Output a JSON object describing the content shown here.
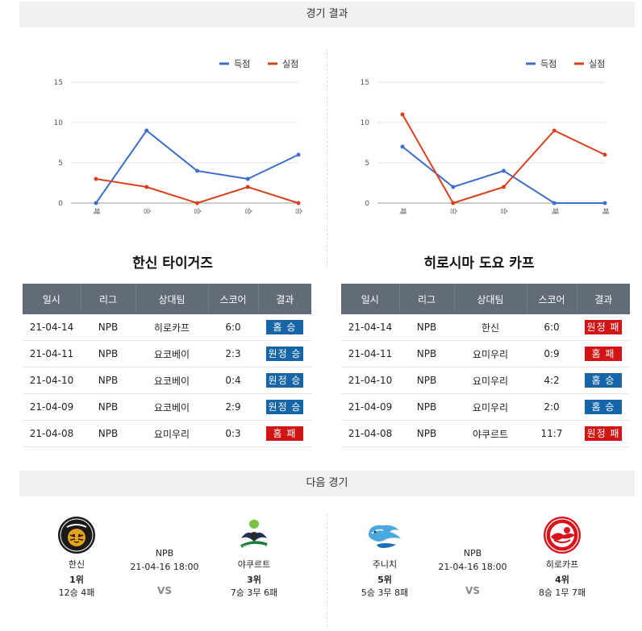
{
  "sections": {
    "results_title": "경기 결과",
    "next_title": "다음 경기"
  },
  "legend": {
    "scored": "득점",
    "allowed": "실점"
  },
  "colors": {
    "scored": "#3b6fc9",
    "allowed": "#d9401c",
    "win_badge": "#1565a8",
    "loss_badge": "#d21414",
    "header": "#626c78"
  },
  "table_headers": [
    "일시",
    "리그",
    "상대팀",
    "스코어",
    "결과"
  ],
  "teams": [
    {
      "name": "한신 타이거즈",
      "chart_data": {
        "type": "line",
        "categories": [
          "패",
          "승",
          "승",
          "승",
          "승"
        ],
        "series": [
          {
            "name": "득점",
            "values": [
              0,
              9,
              4,
              3,
              6
            ]
          },
          {
            "name": "실점",
            "values": [
              3,
              2,
              0,
              2,
              0
            ]
          }
        ],
        "yticks": [
          0,
          5,
          10,
          15
        ],
        "ylim": [
          0,
          15
        ],
        "grid": true,
        "legend": "top-right"
      },
      "recent": [
        {
          "date": "21-04-14",
          "league": "NPB",
          "opponent": "히로카프",
          "score": "6:0",
          "result": "홈 승",
          "win": true
        },
        {
          "date": "21-04-11",
          "league": "NPB",
          "opponent": "요코베이",
          "score": "2:3",
          "result": "원정 승",
          "win": true
        },
        {
          "date": "21-04-10",
          "league": "NPB",
          "opponent": "요코베이",
          "score": "0:4",
          "result": "원정 승",
          "win": true
        },
        {
          "date": "21-04-09",
          "league": "NPB",
          "opponent": "요코베이",
          "score": "2:9",
          "result": "원정 승",
          "win": true
        },
        {
          "date": "21-04-08",
          "league": "NPB",
          "opponent": "요미우리",
          "score": "0:3",
          "result": "홈 패",
          "win": false
        }
      ]
    },
    {
      "name": "히로시마 도요 카프",
      "chart_data": {
        "type": "line",
        "categories": [
          "패",
          "승",
          "승",
          "패",
          "패"
        ],
        "series": [
          {
            "name": "득점",
            "values": [
              7,
              2,
              4,
              0,
              0
            ]
          },
          {
            "name": "실점",
            "values": [
              11,
              0,
              2,
              9,
              6
            ]
          }
        ],
        "yticks": [
          0,
          5,
          10,
          15
        ],
        "ylim": [
          0,
          15
        ],
        "grid": true,
        "legend": "top-right"
      },
      "recent": [
        {
          "date": "21-04-14",
          "league": "NPB",
          "opponent": "한신",
          "score": "6:0",
          "result": "원정 패",
          "win": false
        },
        {
          "date": "21-04-11",
          "league": "NPB",
          "opponent": "요미우리",
          "score": "0:9",
          "result": "홈 패",
          "win": false
        },
        {
          "date": "21-04-10",
          "league": "NPB",
          "opponent": "요미우리",
          "score": "4:2",
          "result": "홈 승",
          "win": true
        },
        {
          "date": "21-04-09",
          "league": "NPB",
          "opponent": "요미우리",
          "score": "2:0",
          "result": "홈 승",
          "win": true
        },
        {
          "date": "21-04-08",
          "league": "NPB",
          "opponent": "야쿠르트",
          "score": "11:7",
          "result": "원정 패",
          "win": false
        }
      ]
    }
  ],
  "next_games": [
    {
      "league": "NPB",
      "datetime": "21-04-16 18:00",
      "vs": "VS",
      "home": {
        "name": "한신",
        "rank": "1위",
        "record": "12승 4패",
        "logo_icon": "hanshin-tigers-logo-icon"
      },
      "away": {
        "name": "야쿠르트",
        "rank": "3위",
        "record": "7승 3무 6패",
        "logo_icon": "yakult-swallows-logo-icon"
      }
    },
    {
      "league": "NPB",
      "datetime": "21-04-16 18:00",
      "vs": "VS",
      "home": {
        "name": "주니치",
        "rank": "5위",
        "record": "5승 3무 8패",
        "logo_icon": "chunichi-dragons-logo-icon"
      },
      "away": {
        "name": "히로카프",
        "rank": "4위",
        "record": "8승 1무 7패",
        "logo_icon": "hiroshima-carp-logo-icon"
      }
    }
  ]
}
